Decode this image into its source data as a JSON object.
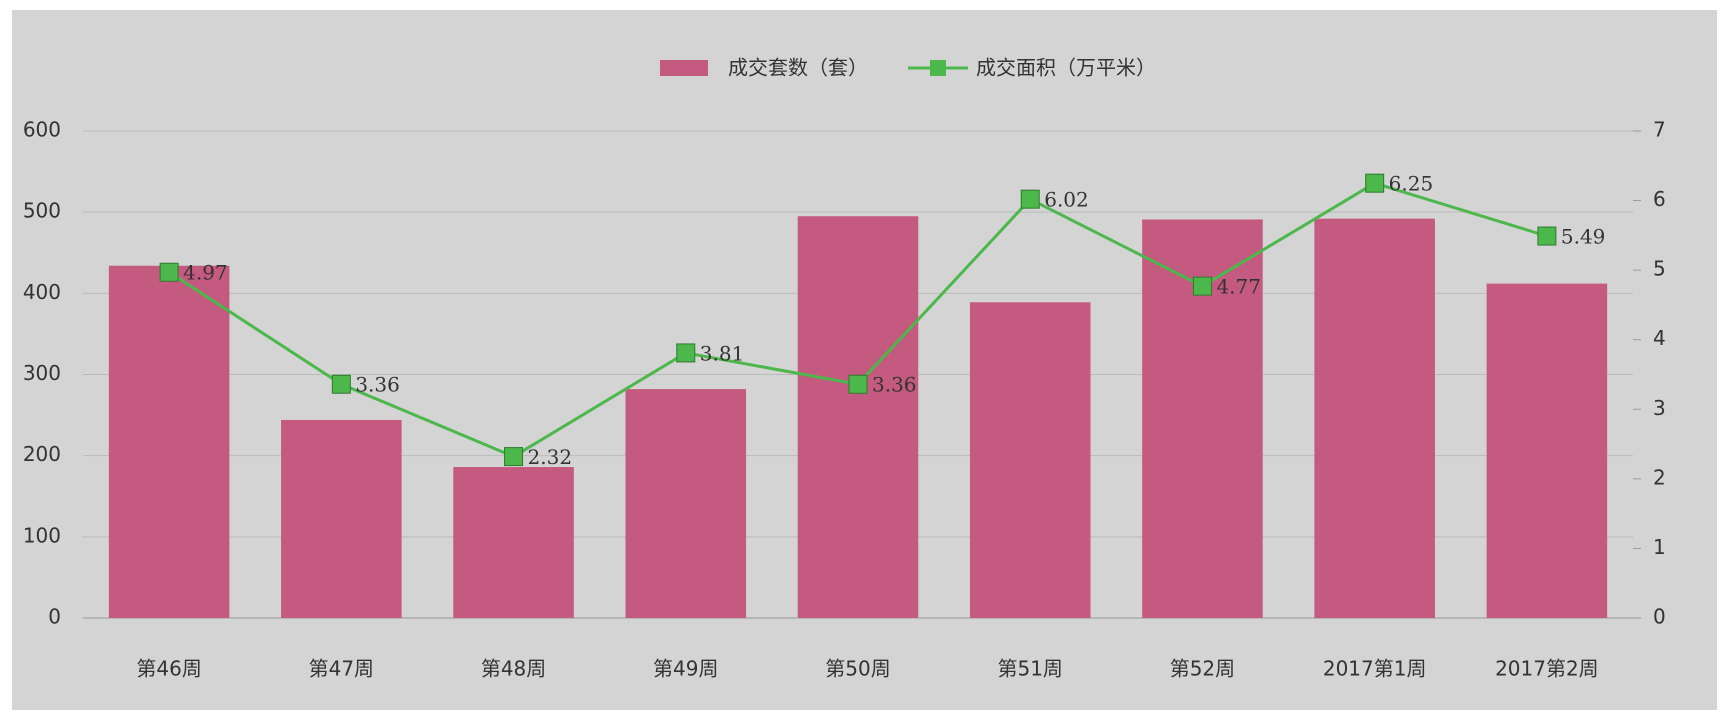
{
  "chart_data": {
    "type": "bar-line",
    "categories": [
      "第46周",
      "第47周",
      "第48周",
      "第49周",
      "第50周",
      "第51周",
      "第52周",
      "2017第1周",
      "2017第2周"
    ],
    "series": [
      {
        "name": "成交套数（套）",
        "type": "bar",
        "color": "#c45a80",
        "values": [
          434,
          244,
          186,
          282,
          495,
          389,
          491,
          492,
          412
        ]
      },
      {
        "name": "成交面积（万平米）",
        "type": "line",
        "axis": "y2",
        "color": "#4cb84c",
        "values": [
          4.97,
          3.36,
          2.32,
          3.81,
          3.36,
          6.02,
          4.77,
          6.25,
          5.49
        ]
      }
    ],
    "ylim": [
      0,
      600
    ],
    "yticks": [
      0,
      100,
      200,
      300,
      400,
      500,
      600
    ],
    "y2lim": [
      0,
      7
    ],
    "y2ticks": [
      0,
      1,
      2,
      3,
      4,
      5,
      6,
      7
    ],
    "grid": true,
    "legend": "top"
  }
}
